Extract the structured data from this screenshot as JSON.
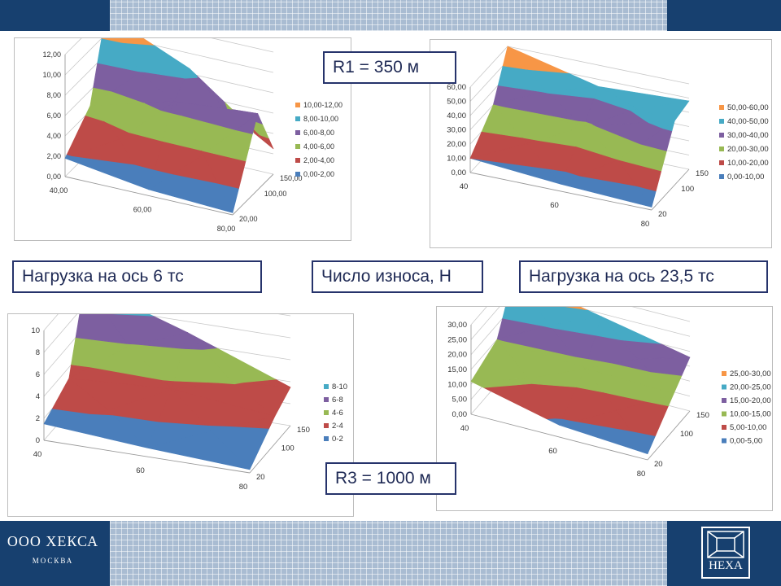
{
  "header": {},
  "labels": {
    "r1": "R1 = 350 м",
    "r3": "R3 = 1000 м",
    "load6": "Нагрузка на ось 6 тс",
    "wear": "Число износа, Н",
    "load23": "Нагрузка на ось 23,5 тс"
  },
  "footer": {
    "company": "ООО ХЕКСА",
    "city": "МОСКВА",
    "logo_text": "HEXA"
  },
  "colors": {
    "band0": "#4a7ebb",
    "band1": "#be4b48",
    "band2": "#98b954",
    "band3": "#7d5fa0",
    "band4": "#46aac5",
    "band5": "#f79646",
    "banner": "#17406f"
  },
  "chart_data": [
    {
      "type": "surface",
      "x": [
        "40,00",
        "60,00",
        "80,00"
      ],
      "z": [
        "20,00",
        "100,00",
        "150,00"
      ],
      "x_values": [
        40,
        60,
        80
      ],
      "z_values": [
        20,
        100,
        150
      ],
      "y": [
        [
          1.8,
          0.6,
          0.2
        ],
        [
          4.5,
          6.8,
          7.5
        ],
        [
          12.0,
          8.5,
          2.5
        ]
      ],
      "yticks": [
        "0,00",
        "2,00",
        "4,00",
        "6,00",
        "8,00",
        "10,00",
        "12,00"
      ],
      "ylim": [
        0,
        12
      ],
      "step": 2,
      "legend": [
        "10,00-12,00",
        "8,00-10,00",
        "6,00-8,00",
        "4,00-6,00",
        "2,00-4,00",
        "0,00-2,00"
      ],
      "legend_position": "right",
      "grid": true
    },
    {
      "type": "surface",
      "x": [
        "40",
        "60",
        "80"
      ],
      "z": [
        "20",
        "100",
        "150"
      ],
      "x_values": [
        40,
        60,
        80
      ],
      "z_values": [
        20,
        100,
        150
      ],
      "y": [
        [
          10,
          5,
          2
        ],
        [
          30,
          28,
          45
        ],
        [
          60,
          45,
          48
        ]
      ],
      "yticks": [
        "0,00",
        "10,00",
        "20,00",
        "30,00",
        "40,00",
        "50,00",
        "60,00"
      ],
      "ylim": [
        0,
        60
      ],
      "step": 10,
      "legend": [
        "50,00-60,00",
        "40,00-50,00",
        "30,00-40,00",
        "20,00-30,00",
        "10,00-20,00",
        "0,00-10,00"
      ],
      "legend_position": "right",
      "grid": true
    },
    {
      "type": "surface",
      "x": [
        "40",
        "60",
        "80"
      ],
      "z": [
        "20",
        "100",
        "150"
      ],
      "x_values": [
        40,
        60,
        80
      ],
      "z_values": [
        20,
        100,
        150
      ],
      "y": [
        [
          1.5,
          0.8,
          0.3
        ],
        [
          3.0,
          3.5,
          2.5
        ],
        [
          10.0,
          7.0,
          3.5
        ]
      ],
      "yticks": [
        "0",
        "2",
        "4",
        "6",
        "8",
        "10"
      ],
      "ylim": [
        0,
        10
      ],
      "step": 2,
      "legend": [
        "8-10",
        "6-8",
        "4-6",
        "2-4",
        "0-2"
      ],
      "legend_position": "right",
      "grid": true
    },
    {
      "type": "surface",
      "x": [
        "40",
        "60",
        "80"
      ],
      "z": [
        "20",
        "100",
        "150"
      ],
      "x_values": [
        40,
        60,
        80
      ],
      "z_values": [
        20,
        100,
        150
      ],
      "y": [
        [
          11,
          4,
          2
        ],
        [
          15,
          13,
          12
        ],
        [
          30,
          24,
          18
        ]
      ],
      "yticks": [
        "0,00",
        "5,00",
        "10,00",
        "15,00",
        "20,00",
        "25,00",
        "30,00"
      ],
      "ylim": [
        0,
        30
      ],
      "step": 5,
      "legend": [
        "25,00-30,00",
        "20,00-25,00",
        "15,00-20,00",
        "10,00-15,00",
        "5,00-10,00",
        "0,00-5,00"
      ],
      "legend_position": "right",
      "grid": true
    }
  ]
}
